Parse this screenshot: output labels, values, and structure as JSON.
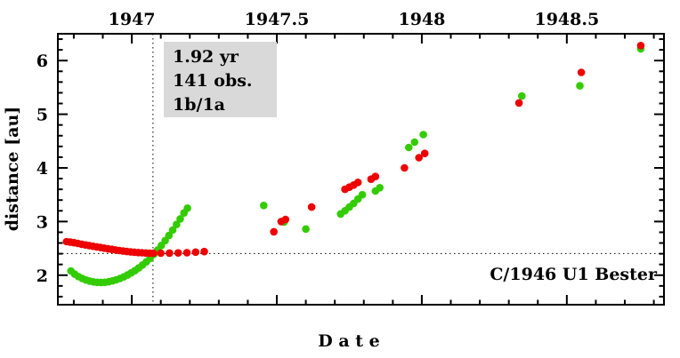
{
  "chart_data": {
    "type": "scatter",
    "title": "",
    "xlabel": "D a t e",
    "ylabel": "distance [au]",
    "corner_label": "C/1946 U1 Bester",
    "annotation": {
      "lines": [
        "1.92 yr",
        "141 obs.",
        "1b/1a"
      ],
      "bg_color": "#d9d9d9"
    },
    "xlim": [
      1946.745,
      1948.835
    ],
    "ylim": [
      1.45,
      6.5
    ],
    "xticks": [
      {
        "value": 1947.0,
        "label": "1947"
      },
      {
        "value": 1947.5,
        "label": "1947.5"
      },
      {
        "value": 1948.0,
        "label": "1948"
      },
      {
        "value": 1948.5,
        "label": "1948.5"
      }
    ],
    "yticks": [
      {
        "value": 2,
        "label": "2"
      },
      {
        "value": 3,
        "label": "3"
      },
      {
        "value": 4,
        "label": "4"
      },
      {
        "value": 5,
        "label": "5"
      },
      {
        "value": 6,
        "label": "6"
      }
    ],
    "x_minor_step": 0.1,
    "y_minor_step": 0.2,
    "grid": false,
    "crosshair": {
      "x": 1947.073,
      "y": 2.405,
      "style": "dotted"
    },
    "series": [
      {
        "name": "green",
        "color": "#33cc00",
        "points": [
          [
            1946.79,
            2.08
          ],
          [
            1946.803,
            2.02
          ],
          [
            1946.816,
            1.975
          ],
          [
            1946.829,
            1.94
          ],
          [
            1946.842,
            1.91
          ],
          [
            1946.855,
            1.89
          ],
          [
            1946.868,
            1.875
          ],
          [
            1946.881,
            1.868
          ],
          [
            1946.894,
            1.865
          ],
          [
            1946.907,
            1.868
          ],
          [
            1946.92,
            1.878
          ],
          [
            1946.933,
            1.893
          ],
          [
            1946.946,
            1.913
          ],
          [
            1946.959,
            1.938
          ],
          [
            1946.972,
            1.968
          ],
          [
            1946.985,
            2.003
          ],
          [
            1946.998,
            2.042
          ],
          [
            1947.011,
            2.086
          ],
          [
            1947.024,
            2.135
          ],
          [
            1947.037,
            2.19
          ],
          [
            1947.05,
            2.25
          ],
          [
            1947.063,
            2.315
          ],
          [
            1947.076,
            2.39
          ],
          [
            1947.089,
            2.47
          ],
          [
            1947.102,
            2.555
          ],
          [
            1947.115,
            2.645
          ],
          [
            1947.128,
            2.74
          ],
          [
            1947.141,
            2.84
          ],
          [
            1947.154,
            2.945
          ],
          [
            1947.167,
            3.05
          ],
          [
            1947.18,
            3.16
          ],
          [
            1947.192,
            3.25
          ],
          [
            1947.455,
            3.3
          ],
          [
            1947.525,
            2.99
          ],
          [
            1947.6,
            2.86
          ],
          [
            1947.72,
            3.14
          ],
          [
            1947.735,
            3.2
          ],
          [
            1947.75,
            3.27
          ],
          [
            1947.765,
            3.34
          ],
          [
            1947.78,
            3.42
          ],
          [
            1947.795,
            3.5
          ],
          [
            1947.84,
            3.57
          ],
          [
            1947.855,
            3.63
          ],
          [
            1947.955,
            4.38
          ],
          [
            1947.975,
            4.48
          ],
          [
            1948.005,
            4.62
          ],
          [
            1948.345,
            5.34
          ],
          [
            1948.545,
            5.53
          ],
          [
            1948.755,
            6.22
          ]
        ]
      },
      {
        "name": "red",
        "color": "#ee0000",
        "points": [
          [
            1946.775,
            2.625
          ],
          [
            1946.788,
            2.615
          ],
          [
            1946.801,
            2.605
          ],
          [
            1946.814,
            2.592
          ],
          [
            1946.827,
            2.578
          ],
          [
            1946.84,
            2.565
          ],
          [
            1946.853,
            2.553
          ],
          [
            1946.866,
            2.54
          ],
          [
            1946.879,
            2.528
          ],
          [
            1946.892,
            2.516
          ],
          [
            1946.905,
            2.504
          ],
          [
            1946.918,
            2.492
          ],
          [
            1946.931,
            2.481
          ],
          [
            1946.944,
            2.47
          ],
          [
            1946.957,
            2.46
          ],
          [
            1946.97,
            2.45
          ],
          [
            1946.983,
            2.442
          ],
          [
            1946.996,
            2.434
          ],
          [
            1947.009,
            2.428
          ],
          [
            1947.022,
            2.422
          ],
          [
            1947.035,
            2.418
          ],
          [
            1947.048,
            2.414
          ],
          [
            1947.061,
            2.411
          ],
          [
            1947.074,
            2.409
          ],
          [
            1947.1,
            2.41
          ],
          [
            1947.13,
            2.412
          ],
          [
            1947.16,
            2.415
          ],
          [
            1947.19,
            2.42
          ],
          [
            1947.22,
            2.43
          ],
          [
            1947.25,
            2.44
          ],
          [
            1947.49,
            2.81
          ],
          [
            1947.515,
            3.0
          ],
          [
            1947.53,
            3.04
          ],
          [
            1947.62,
            3.27
          ],
          [
            1947.735,
            3.6
          ],
          [
            1947.75,
            3.64
          ],
          [
            1947.765,
            3.68
          ],
          [
            1947.78,
            3.73
          ],
          [
            1947.825,
            3.79
          ],
          [
            1947.84,
            3.84
          ],
          [
            1947.94,
            4.0
          ],
          [
            1947.99,
            4.19
          ],
          [
            1948.01,
            4.27
          ],
          [
            1948.335,
            5.21
          ],
          [
            1948.55,
            5.78
          ],
          [
            1948.755,
            6.28
          ]
        ]
      }
    ]
  }
}
